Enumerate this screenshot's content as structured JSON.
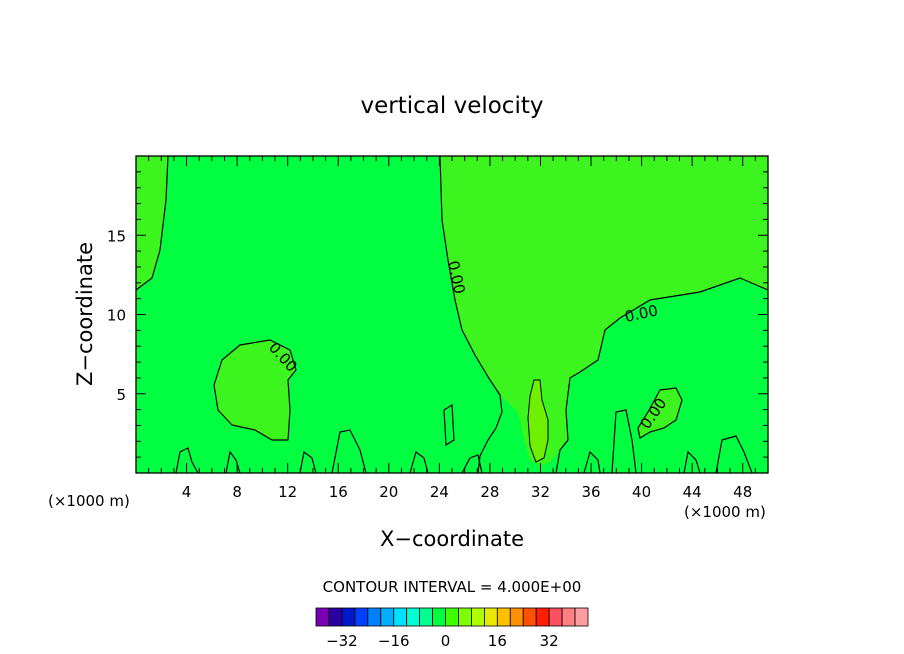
{
  "chart_data": {
    "type": "contour",
    "title": "vertical velocity",
    "xlabel": "X−coordinate",
    "ylabel": "Z−coordinate",
    "x_unit": "(×1000 m)",
    "xlim": [
      0,
      50
    ],
    "ylim": [
      0,
      20
    ],
    "x_ticks": [
      4,
      8,
      12,
      16,
      20,
      24,
      28,
      32,
      36,
      40,
      44,
      48
    ],
    "y_ticks": [
      5,
      10,
      15
    ],
    "contour_label": "0.00",
    "contour_interval_text": "CONTOUR INTERVAL = 4.000E+00",
    "colorbar": {
      "tick_values": [
        -32,
        -16,
        0,
        16,
        32
      ],
      "tick_labels": [
        "−32",
        "−16",
        "0",
        "16",
        "32"
      ],
      "colors": [
        "#7a00b4",
        "#2b00a0",
        "#0018c8",
        "#0040ff",
        "#0080ff",
        "#00b0ff",
        "#00e0ff",
        "#00ffd0",
        "#00ff90",
        "#00ff40",
        "#40ff00",
        "#80ff00",
        "#b0ff00",
        "#e8e800",
        "#ffc000",
        "#ff9000",
        "#ff5000",
        "#ff1e00",
        "#ff5060",
        "#ff8080",
        "#ff9ca0"
      ]
    },
    "regions": [
      {
        "color": "#00ff40",
        "meaning": "background"
      },
      {
        "color": "#3cf51e",
        "meaning": "positive region"
      },
      {
        "color": "#6ef000",
        "meaning": "updraft core"
      }
    ]
  }
}
